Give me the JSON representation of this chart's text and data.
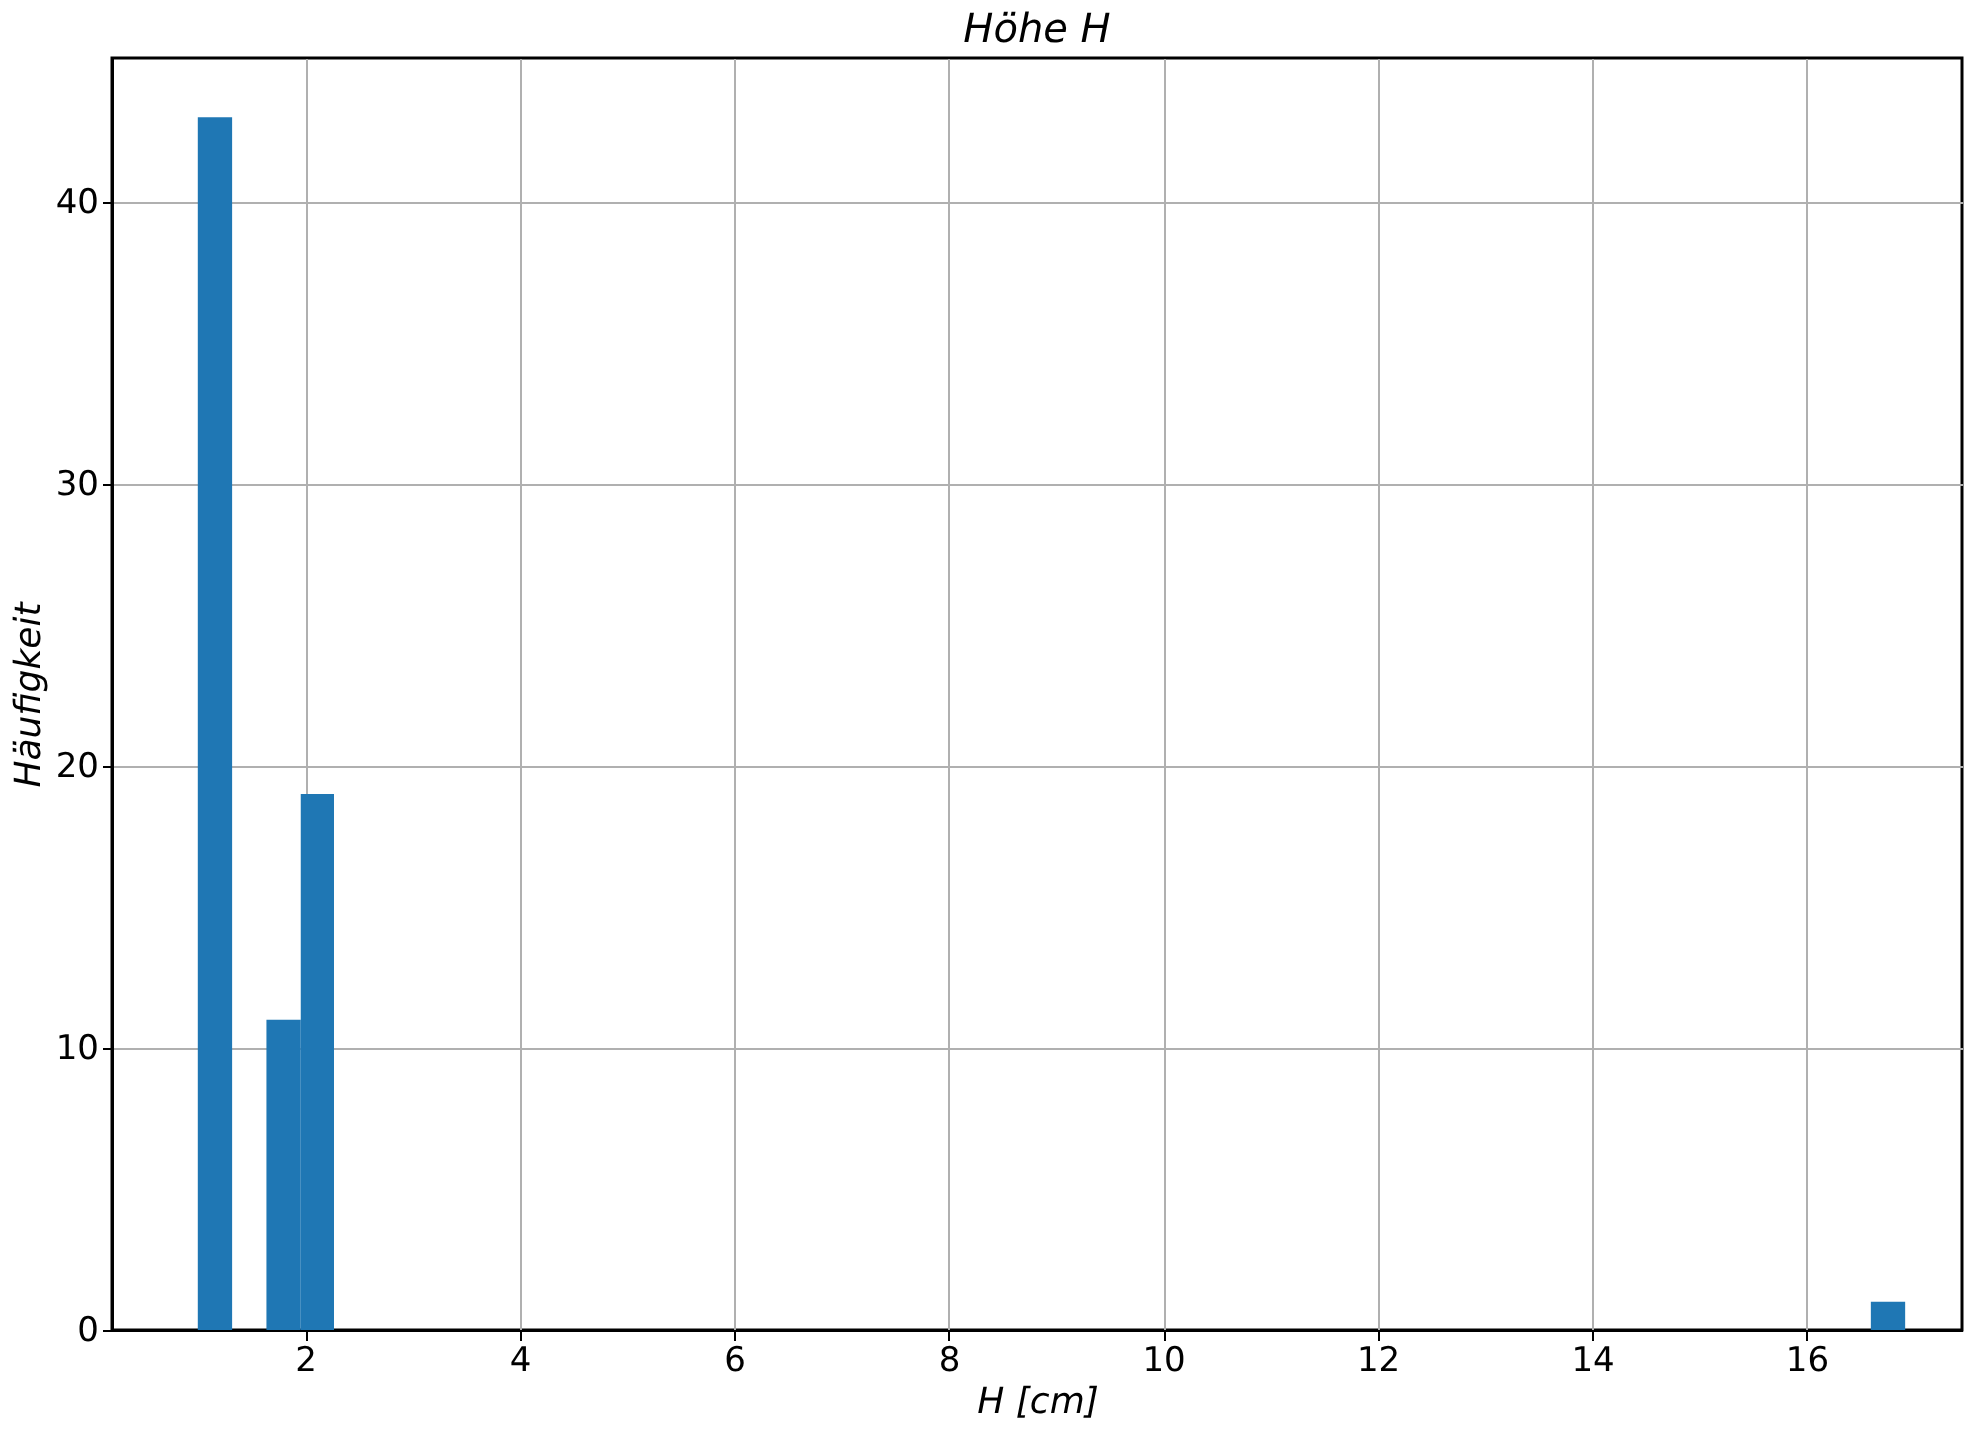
{
  "chart_data": {
    "type": "histogram",
    "title": "Höhe H",
    "xlabel": "H [cm]",
    "ylabel": "Häufigkeit",
    "color": "#1f77b4",
    "bins": [
      1.0,
      1.32,
      1.64,
      1.96,
      2.27,
      16.6,
      16.92
    ],
    "values": [
      43,
      0,
      11,
      19,
      0,
      1
    ],
    "xlim": [
      0.2,
      17.45
    ],
    "ylim": [
      0,
      45.1
    ],
    "xticks": [
      2,
      4,
      6,
      8,
      10,
      12,
      14,
      16
    ],
    "yticks": [
      0,
      10,
      20,
      30,
      40
    ],
    "grid": true
  }
}
